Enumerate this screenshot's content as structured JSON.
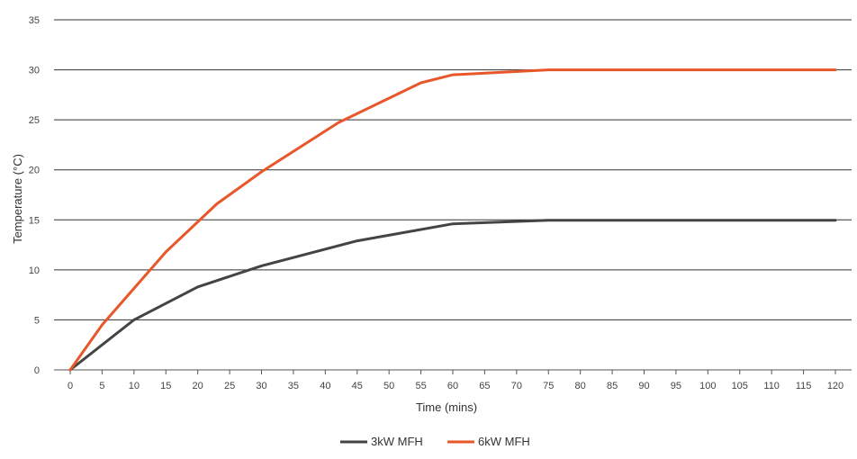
{
  "chart_data": {
    "type": "line",
    "title": "",
    "xlabel": "Time (mins)",
    "ylabel": "Temperature (°C)",
    "xlim": [
      0,
      120
    ],
    "ylim": [
      0,
      35
    ],
    "x_ticks": [
      0,
      5,
      10,
      15,
      20,
      25,
      30,
      35,
      40,
      45,
      50,
      55,
      60,
      65,
      70,
      75,
      80,
      85,
      90,
      95,
      100,
      105,
      110,
      115,
      120
    ],
    "y_ticks": [
      0,
      5,
      10,
      15,
      20,
      25,
      30,
      35
    ],
    "grid": "horizontal",
    "legend_position": "bottom-center",
    "series": [
      {
        "name": "3kW MFH",
        "color": "#444444",
        "x": [
          0,
          10,
          20,
          30,
          45,
          60,
          75,
          120
        ],
        "y": [
          0,
          5,
          8.3,
          10.4,
          12.9,
          14.6,
          14.95,
          14.95
        ]
      },
      {
        "name": "6kW MFH",
        "color": "#e8572a",
        "x": [
          0,
          5,
          15,
          23,
          30,
          42,
          55,
          60,
          75,
          120
        ],
        "y": [
          0,
          4.5,
          11.8,
          16.6,
          19.8,
          24.7,
          28.7,
          29.5,
          30,
          30
        ]
      }
    ]
  }
}
